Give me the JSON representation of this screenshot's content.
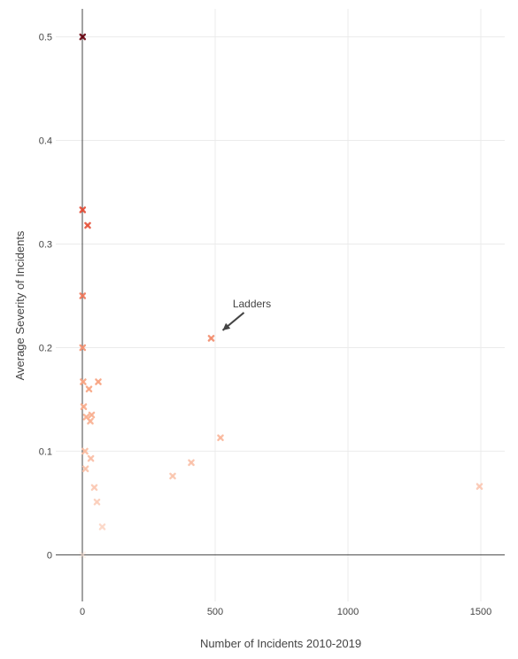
{
  "chart_data": {
    "type": "scatter",
    "xlabel": "Number of Incidents 2010-2019",
    "ylabel": "Average Severity of Incidents",
    "xlim": [
      -100,
      1590
    ],
    "ylim": [
      -0.045,
      0.527
    ],
    "xticks": [
      0,
      500,
      1000,
      1500
    ],
    "yticks": [
      0,
      0.1,
      0.2,
      0.3,
      0.4,
      0.5
    ],
    "xtick_labels": [
      "0",
      "500",
      "1000",
      "1500"
    ],
    "ytick_labels": [
      "0",
      "0.1",
      "0.2",
      "0.3",
      "0.4",
      "0.5"
    ],
    "grid": true,
    "marker": "x",
    "color_scale": [
      "#fde0d2",
      "#f7a27f",
      "#e34a33",
      "#67000d"
    ],
    "points": [
      {
        "x": 1,
        "y": 0.5
      },
      {
        "x": 1,
        "y": 0.333
      },
      {
        "x": 20,
        "y": 0.318
      },
      {
        "x": 1,
        "y": 0.25
      },
      {
        "x": 485,
        "y": 0.209
      },
      {
        "x": 1,
        "y": 0.2
      },
      {
        "x": 3,
        "y": 0.167
      },
      {
        "x": 60,
        "y": 0.167
      },
      {
        "x": 25,
        "y": 0.16
      },
      {
        "x": 5,
        "y": 0.143
      },
      {
        "x": 35,
        "y": 0.135
      },
      {
        "x": 15,
        "y": 0.133
      },
      {
        "x": 30,
        "y": 0.129
      },
      {
        "x": 520,
        "y": 0.113
      },
      {
        "x": 10,
        "y": 0.1
      },
      {
        "x": 32,
        "y": 0.093
      },
      {
        "x": 410,
        "y": 0.089
      },
      {
        "x": 12,
        "y": 0.083
      },
      {
        "x": 340,
        "y": 0.076
      },
      {
        "x": 1495,
        "y": 0.066
      },
      {
        "x": 45,
        "y": 0.065
      },
      {
        "x": 55,
        "y": 0.051
      },
      {
        "x": 75,
        "y": 0.027
      },
      {
        "x": 1,
        "y": 0.0
      }
    ],
    "annotations": [
      {
        "text": "Ladders",
        "x": 485,
        "y": 0.209
      }
    ]
  }
}
